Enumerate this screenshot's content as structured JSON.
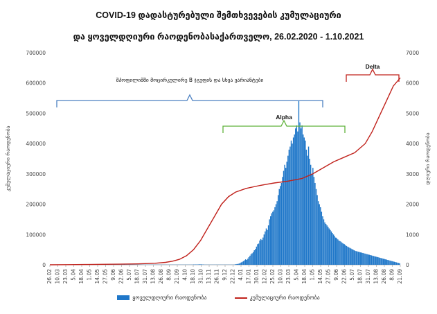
{
  "title_line1": "COVID-19 დადასტურებული შემთხვევების კუმულაციური",
  "title_line2": "და ყოველდღიური რაოდენობასაქართველო, 26.02.2020 - 1.10.2021",
  "legend": {
    "daily": "ყოველდღიური რაოდენობა",
    "cumulative": "კუმულაციური რაოდენობა"
  },
  "colors": {
    "daily": "#1f77c9",
    "cumulative": "#c0211b",
    "original_bracket": "#4a7fc1",
    "alpha_bracket": "#5fb23a",
    "delta_bracket": "#c0211b"
  },
  "annotations": {
    "original": "შპოფილიმში მოცირკულირე B ჯგუფის და სხვა ვარიანტები",
    "alpha": "Alpha",
    "delta": "Delta"
  },
  "chart_data": {
    "type": "bar+line",
    "x_tick_labels": [
      "26.02",
      "10.03",
      "23.03",
      "5.04",
      "18.04",
      "1.05",
      "14.05",
      "27.05",
      "9.06",
      "22.06",
      "5.07",
      "18.07",
      "31.07",
      "13.08",
      "26.08",
      "8.09",
      "21.09",
      "4.10",
      "18.10",
      "31.10",
      "13.11",
      "26.11",
      "9.12",
      "22.12",
      "4.01",
      "17.01",
      "30.01",
      "12.02",
      "25.02",
      "10.03",
      "23.03",
      "5.04",
      "18.04",
      "1.05",
      "14.05",
      "27.05",
      "9.06",
      "22.06",
      "5.07",
      "18.07",
      "31.07",
      "13.08",
      "26.08",
      "8.09",
      "21.09"
    ],
    "left_axis": {
      "label": "კუმულაციური რაოდენობა",
      "ticks": [
        "0",
        "100000",
        "200000",
        "300000",
        "400000",
        "500000",
        "600000",
        "700000"
      ],
      "ylim": [
        0,
        700000
      ]
    },
    "right_axis": {
      "label": "დღიური რაოდენობა",
      "ticks": [
        "0",
        "1000",
        "2000",
        "3000",
        "4000",
        "5000",
        "6000",
        "7000"
      ],
      "ylim": [
        0,
        7000
      ]
    },
    "series": [
      {
        "name": "ყოველდღიური რაოდენობა",
        "type": "bar",
        "axis": "right",
        "values": [
          0,
          0,
          0,
          0,
          0,
          0,
          0,
          0,
          0,
          0,
          0,
          0,
          0,
          0,
          0,
          0,
          0,
          0,
          0,
          0,
          0,
          0,
          0,
          0,
          0,
          0,
          0,
          0,
          0,
          0,
          0,
          0,
          0,
          0,
          0,
          0,
          0,
          0,
          0,
          0,
          0,
          5,
          5,
          10,
          10,
          5,
          5,
          5,
          10,
          15,
          10,
          10,
          10,
          15,
          10,
          5,
          10,
          5,
          5,
          5,
          5,
          5,
          5,
          5,
          5,
          5,
          5,
          5,
          10,
          5,
          5,
          5,
          5,
          5,
          5,
          5,
          5,
          5,
          5,
          5,
          5,
          5,
          5,
          5,
          5,
          5,
          5,
          5,
          5,
          5,
          5,
          5,
          5,
          5,
          5,
          5,
          5,
          5,
          5,
          5,
          5,
          5,
          5,
          5,
          5,
          5,
          5,
          5,
          5,
          5,
          5,
          5,
          5,
          5,
          5,
          5,
          5,
          5,
          5,
          5,
          5,
          5,
          5,
          5,
          5,
          5,
          5,
          5,
          5,
          5,
          5,
          5,
          10,
          10,
          10,
          10,
          10,
          15,
          15,
          15,
          10,
          10,
          5,
          5,
          5,
          5,
          5,
          5,
          5,
          5,
          5,
          5,
          5,
          5,
          5,
          5,
          5,
          5,
          5,
          5,
          5,
          5,
          5,
          5,
          5,
          5,
          5,
          5,
          5,
          5,
          10,
          20,
          25,
          30,
          40,
          60,
          80,
          100,
          120,
          150,
          180,
          160,
          200,
          250,
          300,
          350,
          380,
          420,
          480,
          520,
          600,
          680,
          700,
          800,
          850,
          820,
          900,
          1000,
          1100,
          1200,
          1150,
          1300,
          1500,
          1600,
          1700,
          1750,
          1800,
          1900,
          2000,
          2100,
          2300,
          2500,
          2600,
          2700,
          2900,
          3100,
          3300,
          3200,
          3400,
          3600,
          3800,
          3900,
          4100,
          4000,
          4200,
          4300,
          4500,
          4600,
          4400,
          5400,
          4700,
          4500,
          4600,
          4300,
          4200,
          4100,
          3800,
          3600,
          3900,
          3500,
          3300,
          3000,
          3200,
          2900,
          2700,
          2500,
          2300,
          2100,
          2000,
          1900,
          1750,
          1600,
          1500,
          1400,
          1350,
          1300,
          1250,
          1200,
          1150,
          1100,
          1050,
          1000,
          950,
          900,
          880,
          840,
          800,
          780,
          760,
          720,
          700,
          680,
          650,
          620,
          600,
          580,
          560,
          540,
          520,
          500,
          480,
          460,
          450,
          440,
          430,
          420,
          410,
          400,
          390,
          380,
          370,
          360,
          350,
          340,
          330,
          320,
          310,
          300,
          290,
          280,
          270,
          260,
          250,
          240,
          230,
          220,
          210,
          200,
          190,
          180,
          170,
          160,
          150,
          140,
          130,
          120,
          110,
          100,
          90,
          80,
          70,
          60,
          50
        ],
        "note": "approximate daily new cases (dense daily bars)"
      },
      {
        "name": "კუმულაციური რაოდენობა",
        "type": "line",
        "axis": "left",
        "points": [
          [
            0,
            0
          ],
          [
            0.05,
            500
          ],
          [
            0.1,
            1000
          ],
          [
            0.15,
            1500
          ],
          [
            0.2,
            2000
          ],
          [
            0.25,
            3000
          ],
          [
            0.3,
            5000
          ],
          [
            0.33,
            8000
          ],
          [
            0.35,
            12000
          ],
          [
            0.37,
            18000
          ],
          [
            0.39,
            30000
          ],
          [
            0.41,
            50000
          ],
          [
            0.43,
            80000
          ],
          [
            0.45,
            120000
          ],
          [
            0.47,
            160000
          ],
          [
            0.49,
            200000
          ],
          [
            0.51,
            225000
          ],
          [
            0.53,
            240000
          ],
          [
            0.56,
            252000
          ],
          [
            0.6,
            262000
          ],
          [
            0.64,
            270000
          ],
          [
            0.68,
            276000
          ],
          [
            0.72,
            285000
          ],
          [
            0.75,
            300000
          ],
          [
            0.78,
            320000
          ],
          [
            0.81,
            340000
          ],
          [
            0.84,
            355000
          ],
          [
            0.87,
            370000
          ],
          [
            0.9,
            400000
          ],
          [
            0.92,
            440000
          ],
          [
            0.94,
            490000
          ],
          [
            0.96,
            540000
          ],
          [
            0.98,
            590000
          ],
          [
            1.0,
            617000
          ]
        ]
      }
    ],
    "annotations_ranges": [
      {
        "label": "შპოფილიმში მოცირკულირე B ჯგუფის და სხვა ვარიანტები",
        "from": "26.02",
        "to": "5.05"
      },
      {
        "label": "Alpha",
        "from": "22.12",
        "to": "22.06"
      },
      {
        "label": "Delta",
        "from": "5.07",
        "to": "1.10"
      }
    ]
  }
}
